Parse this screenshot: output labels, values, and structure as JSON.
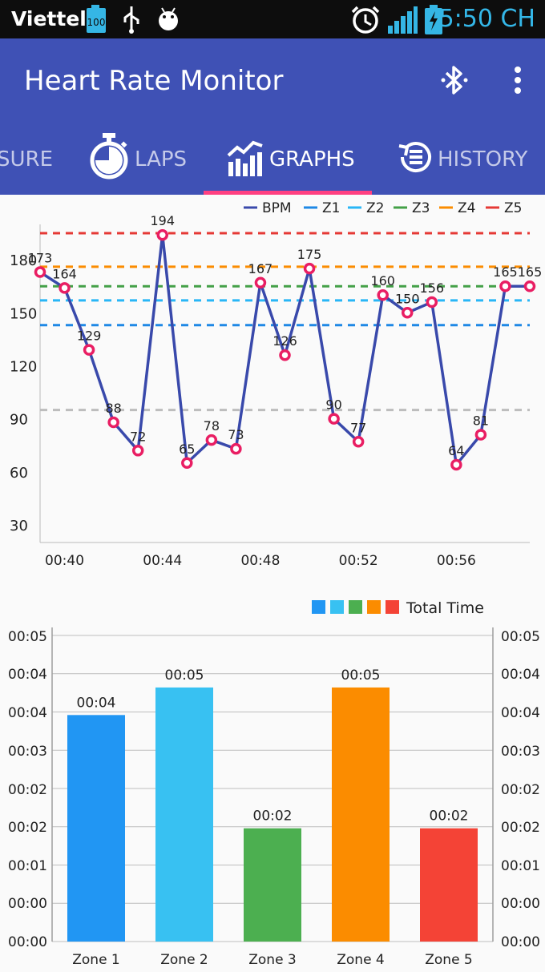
{
  "status_bar": {
    "carrier": "Viettel",
    "battery_badge": "100",
    "time": "5:50 CH",
    "icons": [
      "battery-full-icon",
      "usb-icon",
      "android-debug-icon",
      "alarm-clock-icon",
      "signal-icon",
      "charging-battery-icon"
    ]
  },
  "app_bar": {
    "title": "Heart Rate Monitor",
    "actions": [
      "bluetooth-icon",
      "overflow-menu-icon"
    ],
    "color": "#3f51b5"
  },
  "tabs": [
    {
      "label": "SURE",
      "active": false
    },
    {
      "label": "LAPS",
      "active": false,
      "icon": "stopwatch-icon"
    },
    {
      "label": "GRAPHS",
      "active": true,
      "icon": "chart-icon"
    },
    {
      "label": "HISTORY",
      "active": false,
      "icon": "history-icon"
    }
  ],
  "chart_data": [
    {
      "type": "line",
      "x": [
        "00:39",
        "00:40",
        "00:41",
        "00:42",
        "00:43",
        "00:44",
        "00:45",
        "00:46",
        "00:47",
        "00:48",
        "00:49",
        "00:50",
        "00:51",
        "00:52",
        "00:53",
        "00:54",
        "00:55",
        "00:56",
        "00:57",
        "00:58",
        "00:59"
      ],
      "x_tick_labels": [
        "00:40",
        "00:44",
        "00:48",
        "00:52",
        "00:56"
      ],
      "series": [
        {
          "name": "BPM",
          "color": "#3949ab",
          "values": [
            173,
            164,
            129,
            88,
            72,
            194,
            65,
            78,
            73,
            167,
            126,
            175,
            90,
            77,
            160,
            150,
            156,
            64,
            81,
            165,
            165
          ]
        }
      ],
      "data_labels": [
        "173",
        "164",
        "129",
        "88",
        "72",
        "194",
        "65",
        "78",
        "73",
        "167",
        "126",
        "175",
        "90",
        "77",
        "160",
        "150",
        "156",
        "64",
        "81",
        "165",
        "165"
      ],
      "zone_lines": [
        {
          "name": "Z1",
          "value": 143,
          "color": "#1e88e5"
        },
        {
          "name": "Z2",
          "value": 157,
          "color": "#29b6f6"
        },
        {
          "name": "Z3",
          "value": 165,
          "color": "#43a047"
        },
        {
          "name": "Z4",
          "value": 176,
          "color": "#fb8c00"
        },
        {
          "name": "Z5",
          "value": 195,
          "color": "#e53935"
        }
      ],
      "baseline_line": {
        "value": 95,
        "color": "#bdbdbd"
      },
      "y_ticks": [
        "30",
        "60",
        "90",
        "120",
        "150",
        "180"
      ],
      "ylim": [
        20,
        200
      ],
      "legend": [
        "BPM",
        "Z1",
        "Z2",
        "Z3",
        "Z4",
        "Z5"
      ],
      "legend_position": "top-right",
      "marker_color": "#e91e63"
    },
    {
      "type": "bar",
      "categories": [
        "Zone 1",
        "Zone 2",
        "Zone 3",
        "Zone 4",
        "Zone 5"
      ],
      "values": [
        4,
        5,
        2,
        5,
        2
      ],
      "bar_heights": [
        3.7,
        4.15,
        1.85,
        4.15,
        1.85
      ],
      "value_labels": [
        "00:04",
        "00:05",
        "00:02",
        "00:05",
        "00:02"
      ],
      "colors": [
        "#2196f3",
        "#38c1f2",
        "#4caf50",
        "#fb8c00",
        "#f44336"
      ],
      "legend": "Total Time",
      "legend_position": "top-right",
      "y_tick_labels": [
        "00:00",
        "00:00",
        "00:00",
        "00:01",
        "00:02",
        "00:02",
        "00:03",
        "00:04",
        "00:04",
        "00:05"
      ],
      "right_tick_labels": [
        "00:00",
        "00:00",
        "00:01",
        "00:02",
        "00:02",
        "00:03",
        "00:04",
        "00:04",
        "00:05"
      ],
      "ylim": [
        0,
        5
      ]
    }
  ]
}
